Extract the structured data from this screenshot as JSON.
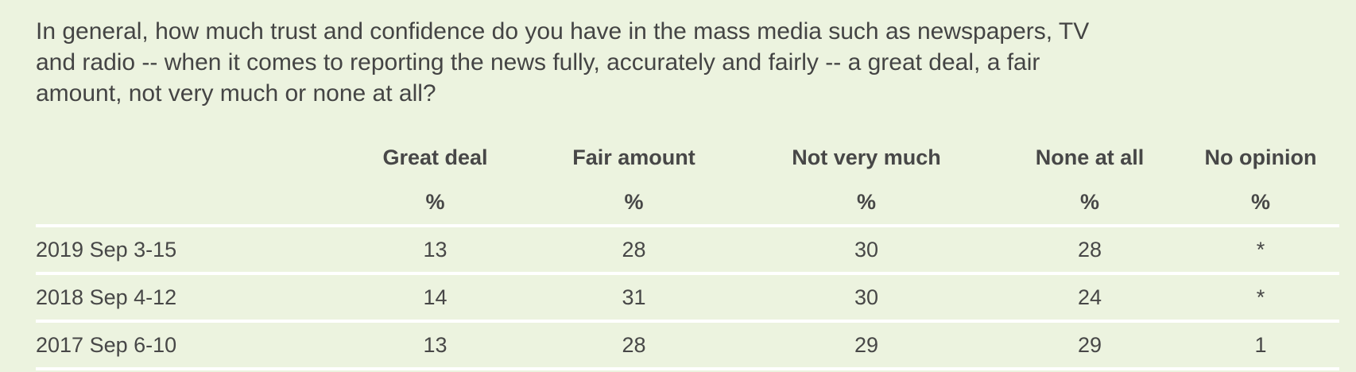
{
  "question": "In general, how much trust and confidence do you have in the mass media such as newspapers, TV and radio -- when it comes to reporting the news fully, accurately and fairly -- a great deal, a fair amount, not very much or none at all?",
  "columns": [
    "Great deal",
    "Fair amount",
    "Not very much",
    "None at all",
    "No opinion"
  ],
  "unit": "%",
  "rows": [
    {
      "label": "2019 Sep 3-15",
      "values": [
        "13",
        "28",
        "30",
        "28",
        "*"
      ]
    },
    {
      "label": "2018 Sep 4-12",
      "values": [
        "14",
        "31",
        "30",
        "24",
        "*"
      ]
    },
    {
      "label": "2017 Sep 6-10",
      "values": [
        "13",
        "28",
        "29",
        "29",
        "1"
      ]
    }
  ],
  "colors": {
    "background": "#ecf3df",
    "divider": "#ffffff",
    "text": "#474747"
  }
}
